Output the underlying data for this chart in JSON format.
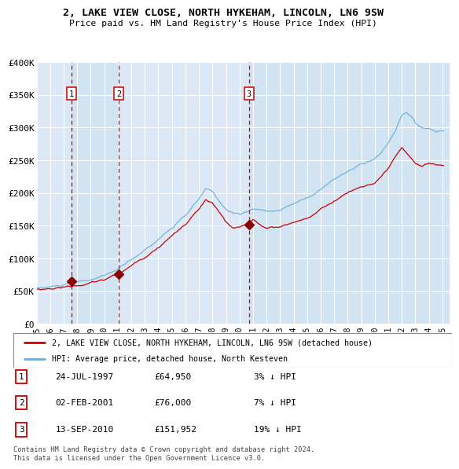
{
  "title1": "2, LAKE VIEW CLOSE, NORTH HYKEHAM, LINCOLN, LN6 9SW",
  "title2": "Price paid vs. HM Land Registry's House Price Index (HPI)",
  "legend1": "2, LAKE VIEW CLOSE, NORTH HYKEHAM, LINCOLN, LN6 9SW (detached house)",
  "legend2": "HPI: Average price, detached house, North Kesteven",
  "footnote": "Contains HM Land Registry data © Crown copyright and database right 2024.\nThis data is licensed under the Open Government Licence v3.0.",
  "sales": [
    {
      "label": "1",
      "date": 1997.56,
      "price": 64950,
      "date_str": "24-JUL-1997",
      "price_str": "£64,950",
      "hpi_str": "3% ↓ HPI"
    },
    {
      "label": "2",
      "date": 2001.09,
      "price": 76000,
      "date_str": "02-FEB-2001",
      "price_str": "£76,000",
      "hpi_str": "7% ↓ HPI"
    },
    {
      "label": "3",
      "date": 2010.71,
      "price": 151952,
      "date_str": "13-SEP-2010",
      "price_str": "£151,952",
      "hpi_str": "19% ↓ HPI"
    }
  ],
  "hpi_line_color": "#6baed6",
  "price_line_color": "#cc0000",
  "sale_dot_color": "#8b0000",
  "vline_color": "#cc0000",
  "shade_color": "#dce8f5",
  "bg_color": "#dce8f5",
  "ylim": [
    0,
    400000
  ],
  "xlim": [
    1995.0,
    2025.5
  ],
  "yticks": [
    0,
    50000,
    100000,
    150000,
    200000,
    250000,
    300000,
    350000,
    400000
  ],
  "ytick_labels": [
    "£0",
    "£50K",
    "£100K",
    "£150K",
    "£200K",
    "£250K",
    "£300K",
    "£350K",
    "£400K"
  ],
  "xticks": [
    1995,
    1996,
    1997,
    1998,
    1999,
    2000,
    2001,
    2002,
    2003,
    2004,
    2005,
    2006,
    2007,
    2008,
    2009,
    2010,
    2011,
    2012,
    2013,
    2014,
    2015,
    2016,
    2017,
    2018,
    2019,
    2020,
    2021,
    2022,
    2023,
    2024,
    2025
  ]
}
